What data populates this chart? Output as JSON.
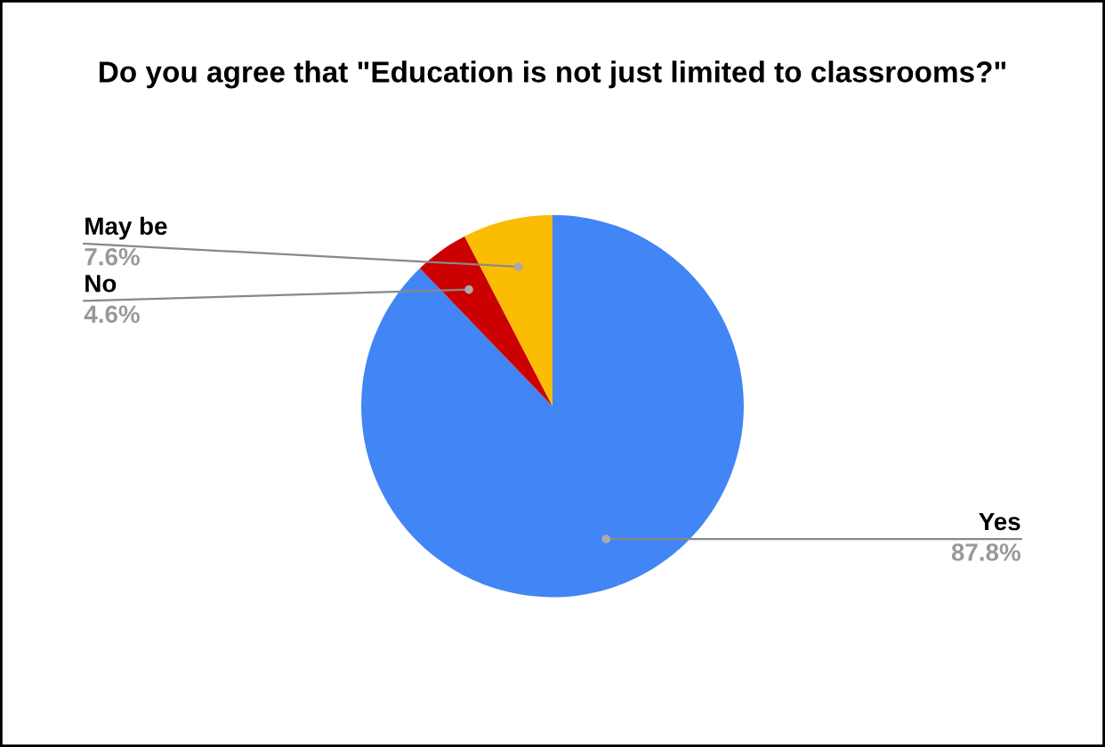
{
  "chart_data": {
    "type": "pie",
    "title": "Do you agree that \"Education is not just limited to classrooms?\"",
    "categories": [
      "Yes",
      "No",
      "May be"
    ],
    "values": [
      87.8,
      4.6,
      7.6
    ],
    "value_labels": [
      "87.8%",
      "4.6%",
      "7.6%"
    ],
    "colors": [
      "#4285f4",
      "#cc0000",
      "#fbbc04"
    ],
    "legend": false
  }
}
